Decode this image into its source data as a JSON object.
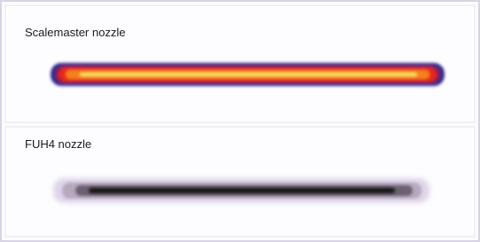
{
  "panels": [
    {
      "label": "Scalemaster nozzle"
    },
    {
      "label": "FUH4 nozzle"
    }
  ]
}
